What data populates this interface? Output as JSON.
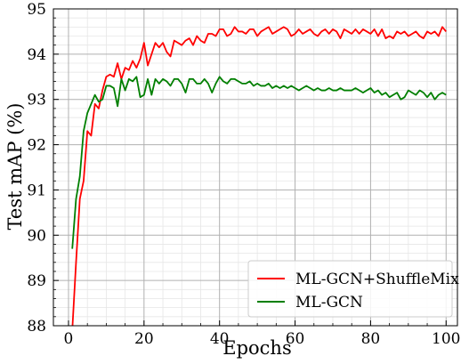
{
  "chart_data": {
    "type": "line",
    "xlabel": "Epochs",
    "ylabel": "Test mAP (%)",
    "xlim": [
      -4,
      103
    ],
    "ylim": [
      88,
      95
    ],
    "xticks": [
      0,
      20,
      40,
      60,
      80,
      100
    ],
    "yticks": [
      88,
      89,
      90,
      91,
      92,
      93,
      94,
      95
    ],
    "grid": true,
    "minor_ticks": true,
    "legend_position": "lower-right",
    "series": [
      {
        "name": "ML-GCN+ShuffleMix",
        "color": "#ff0000",
        "x": [
          1,
          2,
          3,
          4,
          5,
          6,
          7,
          8,
          9,
          10,
          11,
          12,
          13,
          14,
          15,
          16,
          17,
          18,
          19,
          20,
          21,
          22,
          23,
          24,
          25,
          26,
          27,
          28,
          29,
          30,
          31,
          32,
          33,
          34,
          35,
          36,
          37,
          38,
          39,
          40,
          41,
          42,
          43,
          44,
          45,
          46,
          47,
          48,
          49,
          50,
          51,
          52,
          53,
          54,
          55,
          56,
          57,
          58,
          59,
          60,
          61,
          62,
          63,
          64,
          65,
          66,
          67,
          68,
          69,
          70,
          71,
          72,
          73,
          74,
          75,
          76,
          77,
          78,
          79,
          80,
          81,
          82,
          83,
          84,
          85,
          86,
          87,
          88,
          89,
          90,
          91,
          92,
          93,
          94,
          95,
          96,
          97,
          98,
          99,
          100
        ],
        "values": [
          87.9,
          89.4,
          90.8,
          91.2,
          92.3,
          92.2,
          92.9,
          92.8,
          93.2,
          93.5,
          93.55,
          93.5,
          93.8,
          93.45,
          93.7,
          93.65,
          93.85,
          93.7,
          93.9,
          94.25,
          93.75,
          94.0,
          94.25,
          94.15,
          94.25,
          94.05,
          93.95,
          94.3,
          94.25,
          94.2,
          94.3,
          94.35,
          94.2,
          94.4,
          94.3,
          94.25,
          94.45,
          94.45,
          94.4,
          94.55,
          94.55,
          94.4,
          94.45,
          94.6,
          94.5,
          94.5,
          94.45,
          94.55,
          94.55,
          94.4,
          94.5,
          94.55,
          94.6,
          94.45,
          94.5,
          94.55,
          94.6,
          94.55,
          94.4,
          94.45,
          94.55,
          94.45,
          94.5,
          94.55,
          94.45,
          94.4,
          94.5,
          94.55,
          94.45,
          94.55,
          94.5,
          94.35,
          94.55,
          94.5,
          94.45,
          94.55,
          94.45,
          94.55,
          94.5,
          94.45,
          94.55,
          94.4,
          94.55,
          94.35,
          94.4,
          94.35,
          94.5,
          94.45,
          94.5,
          94.4,
          94.45,
          94.5,
          94.4,
          94.35,
          94.5,
          94.45,
          94.5,
          94.4,
          94.6,
          94.5
        ]
      },
      {
        "name": "ML-GCN",
        "color": "#007f00",
        "x": [
          1,
          2,
          3,
          4,
          5,
          6,
          7,
          8,
          9,
          10,
          11,
          12,
          13,
          14,
          15,
          16,
          17,
          18,
          19,
          20,
          21,
          22,
          23,
          24,
          25,
          26,
          27,
          28,
          29,
          30,
          31,
          32,
          33,
          34,
          35,
          36,
          37,
          38,
          39,
          40,
          41,
          42,
          43,
          44,
          45,
          46,
          47,
          48,
          49,
          50,
          51,
          52,
          53,
          54,
          55,
          56,
          57,
          58,
          59,
          60,
          61,
          62,
          63,
          64,
          65,
          66,
          67,
          68,
          69,
          70,
          71,
          72,
          73,
          74,
          75,
          76,
          77,
          78,
          79,
          80,
          81,
          82,
          83,
          84,
          85,
          86,
          87,
          88,
          89,
          90,
          91,
          92,
          93,
          94,
          95,
          96,
          97,
          98,
          99,
          100
        ],
        "values": [
          89.7,
          90.8,
          91.3,
          92.3,
          92.7,
          92.9,
          93.1,
          92.95,
          93.0,
          93.3,
          93.3,
          93.25,
          92.85,
          93.45,
          93.2,
          93.45,
          93.4,
          93.5,
          93.05,
          93.1,
          93.45,
          93.1,
          93.45,
          93.35,
          93.45,
          93.4,
          93.3,
          93.45,
          93.45,
          93.35,
          93.15,
          93.45,
          93.45,
          93.35,
          93.35,
          93.45,
          93.35,
          93.15,
          93.35,
          93.5,
          93.4,
          93.35,
          93.45,
          93.45,
          93.4,
          93.35,
          93.35,
          93.4,
          93.3,
          93.35,
          93.3,
          93.3,
          93.35,
          93.25,
          93.3,
          93.25,
          93.3,
          93.25,
          93.3,
          93.25,
          93.2,
          93.25,
          93.3,
          93.25,
          93.2,
          93.25,
          93.2,
          93.2,
          93.25,
          93.2,
          93.2,
          93.25,
          93.2,
          93.2,
          93.2,
          93.25,
          93.2,
          93.15,
          93.2,
          93.25,
          93.15,
          93.2,
          93.1,
          93.15,
          93.05,
          93.1,
          93.15,
          93.0,
          93.05,
          93.2,
          93.15,
          93.1,
          93.2,
          93.15,
          93.05,
          93.15,
          93.0,
          93.1,
          93.15,
          93.1
        ]
      }
    ]
  }
}
